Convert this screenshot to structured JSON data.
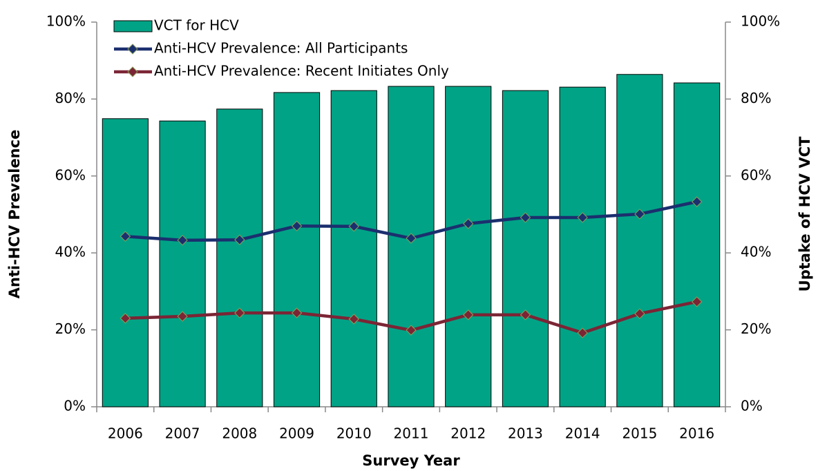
{
  "chart_data": {
    "type": "bar_line",
    "xlabel": "Survey Year",
    "ylabel": "Anti-HCV Prevalence",
    "y2label": "Uptake of HCV VCT",
    "categories": [
      "2006",
      "2007",
      "2008",
      "2009",
      "2010",
      "2011",
      "2012",
      "2013",
      "2014",
      "2015",
      "2016"
    ],
    "series": [
      {
        "name": "VCT for HCV",
        "type": "bar",
        "axis": "y2",
        "color": "#00a386",
        "values": [
          74.9,
          74.3,
          77.4,
          81.7,
          82.2,
          83.3,
          83.3,
          82.2,
          83.1,
          86.4,
          84.2
        ]
      },
      {
        "name": "Anti-HCV Prevalence: All Participants",
        "type": "line",
        "color": "#1b2f6e",
        "values": [
          44.3,
          43.3,
          43.4,
          47.0,
          46.9,
          43.8,
          47.6,
          49.2,
          49.2,
          50.1,
          53.3
        ]
      },
      {
        "name": "Anti-HCV Prevalence: Recent Initiates Only",
        "type": "line",
        "color": "#7b2535",
        "values": [
          23.0,
          23.5,
          24.4,
          24.4,
          22.8,
          19.9,
          23.9,
          23.9,
          19.2,
          24.2,
          27.3
        ]
      }
    ],
    "ylim": [
      0,
      100
    ],
    "yticks": [
      {
        "value": 0,
        "label": "0%"
      },
      {
        "value": 20,
        "label": "20%"
      },
      {
        "value": 40,
        "label": "40%"
      },
      {
        "value": 60,
        "label": "60%"
      },
      {
        "value": 80,
        "label": "80%"
      },
      {
        "value": 100,
        "label": "100%"
      }
    ],
    "y2lim": [
      0,
      100
    ],
    "y2ticks": [
      {
        "value": 0,
        "label": "0%"
      },
      {
        "value": 20,
        "label": "20%"
      },
      {
        "value": 40,
        "label": "40%"
      },
      {
        "value": 60,
        "label": "60%"
      },
      {
        "value": 80,
        "label": "80%"
      },
      {
        "value": 100,
        "label": "100%"
      }
    ],
    "legend": "upper left"
  }
}
